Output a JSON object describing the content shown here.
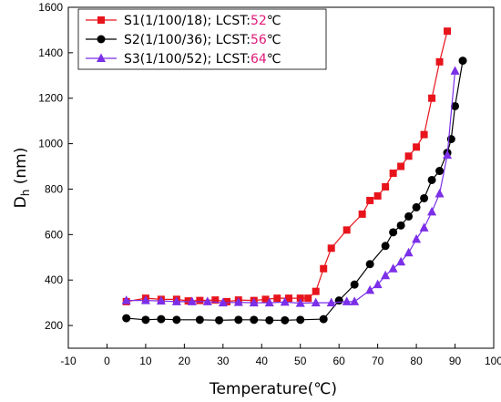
{
  "chart_data": {
    "type": "line",
    "xlabel": "Temperature(℃)",
    "ylabel_main": "D",
    "ylabel_sub": "h",
    "ylabel_unit": " (nm)",
    "xlim": [
      -10,
      100
    ],
    "ylim": [
      100,
      1600
    ],
    "xticks": [
      -10,
      0,
      10,
      20,
      30,
      40,
      50,
      60,
      70,
      80,
      90,
      100
    ],
    "yticks": [
      200,
      400,
      600,
      800,
      1000,
      1200,
      1400,
      1600
    ],
    "legend_position": "top-left",
    "highlight_color": "#e0197a",
    "series": [
      {
        "name": "S1",
        "legend_prefix": "S1(1/100/18); LCST:",
        "lcst": "52",
        "legend_suffix": "℃",
        "color": "#e8141c",
        "marker": "square",
        "x": [
          5,
          10,
          14,
          18,
          21,
          24,
          28,
          31,
          34,
          38,
          41,
          44,
          47,
          50,
          52,
          54,
          56,
          58,
          62,
          66,
          68,
          70,
          72,
          74,
          76,
          78,
          80,
          82,
          84,
          86,
          88
        ],
        "y": [
          305,
          320,
          315,
          315,
          308,
          310,
          312,
          305,
          312,
          310,
          315,
          320,
          320,
          320,
          320,
          350,
          450,
          540,
          620,
          690,
          750,
          770,
          810,
          870,
          900,
          945,
          985,
          1040,
          1200,
          1360,
          1495
        ]
      },
      {
        "name": "S2",
        "legend_prefix": "S2(1/100/36); LCST:",
        "lcst": "56",
        "legend_suffix": "℃",
        "color": "#000000",
        "marker": "circle",
        "x": [
          5,
          10,
          14,
          18,
          24,
          29,
          34,
          38,
          42,
          46,
          50,
          56,
          60,
          64,
          68,
          72,
          74,
          76,
          78,
          80,
          82,
          84,
          86,
          88,
          89,
          90,
          92
        ],
        "y": [
          232,
          225,
          228,
          225,
          225,
          223,
          225,
          225,
          223,
          223,
          225,
          228,
          310,
          380,
          470,
          550,
          610,
          640,
          680,
          720,
          760,
          840,
          880,
          960,
          1020,
          1165,
          1365
        ]
      },
      {
        "name": "S3",
        "legend_prefix": "S3(1/100/52); LCST:",
        "lcst": "64",
        "legend_suffix": "℃",
        "color": "#7b2fe8",
        "marker": "triangle",
        "x": [
          5,
          10,
          14,
          18,
          22,
          26,
          30,
          34,
          38,
          42,
          46,
          50,
          54,
          58,
          62,
          64,
          68,
          70,
          72,
          74,
          76,
          78,
          80,
          82,
          84,
          86,
          88,
          90
        ],
        "y": [
          310,
          310,
          308,
          305,
          305,
          305,
          300,
          302,
          300,
          300,
          303,
          298,
          300,
          300,
          305,
          305,
          355,
          380,
          420,
          450,
          480,
          520,
          580,
          630,
          700,
          780,
          950,
          1320
        ]
      }
    ]
  }
}
